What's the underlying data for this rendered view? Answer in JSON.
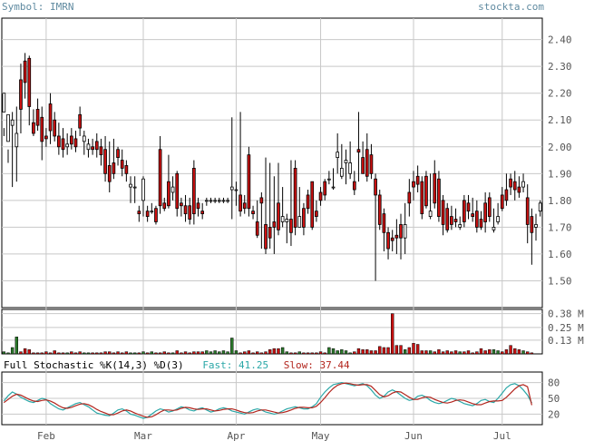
{
  "header": {
    "symbol_text": "Symbol: IMRN",
    "site_text": "stockta.com"
  },
  "stoch": {
    "title": "Full Stochastic %K(14,3) %D(3)",
    "fast_label": "Fast: 41.25",
    "slow_label": "Slow: 37.44"
  },
  "colors": {
    "up": "#ffffff",
    "down": "#cc1111",
    "wick": "#000000",
    "vol_up": "#2a7a2a",
    "vol_down": "#cc1111",
    "fast": "#2aa7a7",
    "slow": "#b3261e",
    "grid": "#c8c8c8"
  },
  "chart_data": [
    {
      "type": "candlestick",
      "ylim": [
        1.4,
        2.48
      ],
      "y_ticks": [
        "2.40",
        "2.30",
        "2.20",
        "2.10",
        "2.00",
        "1.90",
        "1.80",
        "1.70",
        "1.60",
        "1.50"
      ],
      "x_ticks": [
        "Feb",
        "Mar",
        "Apr",
        "May",
        "Jun",
        "Jul"
      ],
      "x_tick_index": [
        10,
        33,
        55,
        75,
        97,
        118
      ],
      "grid": true,
      "candles": [
        [
          2.13,
          2.2,
          2.07,
          2.04
        ],
        [
          2.02,
          2.12,
          1.99,
          1.94
        ],
        [
          2.08,
          2.1,
          2.13,
          1.85
        ],
        [
          2.0,
          2.05,
          2.15,
          1.87
        ],
        [
          2.25,
          2.14,
          2.31,
          2.05
        ],
        [
          2.32,
          2.24,
          2.35,
          2.18
        ],
        [
          2.33,
          2.15,
          2.34,
          2.08
        ],
        [
          2.09,
          2.05,
          2.14,
          2.04
        ],
        [
          2.14,
          2.08,
          2.18,
          2.06
        ],
        [
          2.11,
          2.02,
          2.15,
          1.95
        ],
        [
          2.04,
          2.03,
          2.07,
          2.0
        ],
        [
          2.16,
          2.06,
          2.2,
          2.01
        ],
        [
          2.1,
          2.04,
          2.13,
          2.02
        ],
        [
          2.04,
          2.0,
          2.09,
          1.97
        ],
        [
          2.03,
          1.99,
          2.07,
          1.96
        ],
        [
          2.0,
          2.01,
          2.05,
          1.97
        ],
        [
          2.04,
          2.01,
          2.07,
          1.99
        ],
        [
          2.03,
          2.0,
          2.06,
          1.98
        ],
        [
          2.12,
          2.07,
          2.15,
          2.04
        ],
        [
          2.02,
          2.04,
          2.06,
          1.97
        ],
        [
          1.99,
          2.01,
          2.03,
          1.96
        ],
        [
          2.0,
          1.99,
          2.03,
          1.97
        ],
        [
          2.02,
          1.99,
          2.05,
          1.96
        ],
        [
          2.0,
          1.97,
          2.03,
          1.93
        ],
        [
          1.99,
          1.9,
          2.04,
          1.87
        ],
        [
          1.93,
          1.87,
          2.02,
          1.83
        ],
        [
          1.94,
          1.9,
          2.03,
          1.88
        ],
        [
          1.99,
          1.96,
          2.0,
          1.93
        ],
        [
          1.95,
          1.92,
          1.99,
          1.89
        ],
        [
          1.93,
          1.9,
          1.95,
          1.87
        ],
        [
          1.85,
          1.86,
          1.89,
          1.79
        ],
        [
          1.85,
          1.85,
          1.89,
          1.79
        ],
        [
          1.76,
          1.75,
          1.78,
          1.72
        ],
        [
          1.8,
          1.88,
          1.89,
          1.74
        ],
        [
          1.76,
          1.74,
          1.78,
          1.72
        ],
        [
          1.76,
          1.76,
          1.79,
          1.75
        ],
        [
          1.77,
          1.72,
          1.78,
          1.71
        ],
        [
          1.99,
          1.78,
          2.04,
          1.75
        ],
        [
          1.79,
          1.77,
          1.81,
          1.76
        ],
        [
          1.87,
          1.78,
          1.97,
          1.77
        ],
        [
          1.83,
          1.85,
          1.89,
          1.8
        ],
        [
          1.9,
          1.77,
          1.91,
          1.74
        ],
        [
          1.79,
          1.78,
          1.81,
          1.74
        ],
        [
          1.78,
          1.75,
          1.82,
          1.72
        ],
        [
          1.78,
          1.73,
          1.81,
          1.71
        ],
        [
          1.92,
          1.75,
          1.95,
          1.71
        ],
        [
          1.79,
          1.77,
          1.81,
          1.74
        ],
        [
          1.76,
          1.75,
          1.79,
          1.73
        ],
        [
          1.8,
          1.8,
          1.81,
          1.78
        ],
        [
          1.8,
          1.8,
          1.81,
          1.79
        ],
        [
          1.8,
          1.8,
          1.81,
          1.79
        ],
        [
          1.8,
          1.8,
          1.81,
          1.79
        ],
        [
          1.8,
          1.8,
          1.81,
          1.79
        ],
        [
          1.8,
          1.8,
          1.81,
          1.79
        ],
        [
          1.84,
          1.85,
          2.11,
          1.73
        ],
        [
          1.84,
          1.84,
          1.87,
          1.78
        ],
        [
          1.82,
          1.76,
          2.13,
          1.74
        ],
        [
          1.79,
          1.77,
          1.82,
          1.75
        ],
        [
          1.97,
          1.77,
          2.0,
          1.74
        ],
        [
          1.76,
          1.75,
          1.78,
          1.73
        ],
        [
          1.72,
          1.67,
          1.8,
          1.66
        ],
        [
          1.81,
          1.79,
          1.83,
          1.62
        ],
        [
          1.71,
          1.62,
          1.96,
          1.6
        ],
        [
          1.7,
          1.66,
          1.94,
          1.62
        ],
        [
          1.72,
          1.7,
          1.89,
          1.6
        ],
        [
          1.79,
          1.69,
          1.94,
          1.67
        ],
        [
          1.72,
          1.74,
          1.85,
          1.7
        ],
        [
          1.72,
          1.73,
          1.75,
          1.64
        ],
        [
          1.73,
          1.68,
          1.95,
          1.63
        ],
        [
          1.92,
          1.7,
          1.95,
          1.67
        ],
        [
          1.7,
          1.74,
          1.85,
          1.72
        ],
        [
          1.77,
          1.7,
          1.79,
          1.67
        ],
        [
          1.82,
          1.77,
          1.84,
          1.75
        ],
        [
          1.87,
          1.7,
          1.87,
          1.69
        ],
        [
          1.76,
          1.74,
          1.8,
          1.72
        ],
        [
          1.83,
          1.8,
          1.85,
          1.78
        ],
        [
          1.87,
          1.82,
          1.88,
          1.8
        ],
        [
          1.88,
          1.88,
          1.91,
          1.86
        ],
        [
          1.85,
          1.85,
          1.92,
          1.84
        ],
        [
          1.96,
          1.98,
          2.05,
          1.9
        ],
        [
          1.89,
          1.92,
          2.01,
          1.88
        ],
        [
          1.94,
          1.95,
          1.99,
          1.86
        ],
        [
          1.9,
          1.94,
          2.02,
          1.88
        ],
        [
          1.87,
          1.84,
          1.91,
          1.82
        ],
        [
          1.99,
          1.98,
          2.13,
          1.87
        ],
        [
          1.96,
          1.9,
          2.02,
          1.9
        ],
        [
          1.99,
          1.89,
          2.05,
          1.87
        ],
        [
          1.97,
          1.9,
          2.01,
          1.88
        ],
        [
          1.88,
          1.82,
          1.9,
          1.5
        ],
        [
          1.82,
          1.71,
          1.84,
          1.69
        ],
        [
          1.75,
          1.68,
          1.77,
          1.61
        ],
        [
          1.68,
          1.62,
          1.7,
          1.58
        ],
        [
          1.66,
          1.65,
          1.69,
          1.61
        ],
        [
          1.67,
          1.66,
          1.73,
          1.6
        ],
        [
          1.71,
          1.66,
          1.75,
          1.58
        ],
        [
          1.66,
          1.71,
          1.79,
          1.6
        ],
        [
          1.83,
          1.79,
          1.88,
          1.74
        ],
        [
          1.87,
          1.85,
          1.91,
          1.8
        ],
        [
          1.89,
          1.86,
          1.93,
          1.83
        ],
        [
          1.87,
          1.75,
          1.89,
          1.73
        ],
        [
          1.89,
          1.78,
          1.91,
          1.77
        ],
        [
          1.74,
          1.76,
          1.9,
          1.73
        ],
        [
          1.9,
          1.79,
          1.95,
          1.77
        ],
        [
          1.88,
          1.74,
          1.91,
          1.72
        ],
        [
          1.8,
          1.71,
          1.82,
          1.67
        ],
        [
          1.77,
          1.69,
          1.79,
          1.68
        ],
        [
          1.74,
          1.71,
          1.78,
          1.69
        ],
        [
          1.73,
          1.72,
          1.77,
          1.7
        ],
        [
          1.7,
          1.71,
          1.74,
          1.69
        ],
        [
          1.8,
          1.72,
          1.82,
          1.7
        ],
        [
          1.79,
          1.76,
          1.82,
          1.73
        ],
        [
          1.75,
          1.74,
          1.81,
          1.72
        ],
        [
          1.76,
          1.7,
          1.8,
          1.68
        ],
        [
          1.73,
          1.7,
          1.76,
          1.69
        ],
        [
          1.79,
          1.72,
          1.83,
          1.68
        ],
        [
          1.81,
          1.74,
          1.83,
          1.72
        ],
        [
          1.69,
          1.7,
          1.77,
          1.68
        ],
        [
          1.72,
          1.74,
          1.79,
          1.71
        ],
        [
          1.82,
          1.77,
          1.85,
          1.76
        ],
        [
          1.84,
          1.8,
          1.9,
          1.78
        ],
        [
          1.88,
          1.85,
          1.9,
          1.82
        ],
        [
          1.87,
          1.84,
          1.91,
          1.8
        ],
        [
          1.85,
          1.83,
          1.89,
          1.81
        ],
        [
          1.85,
          1.87,
          1.9,
          1.83
        ],
        [
          1.81,
          1.71,
          1.86,
          1.64
        ],
        [
          1.74,
          1.68,
          1.77,
          1.56
        ],
        [
          1.7,
          1.71,
          1.75,
          1.65
        ],
        [
          1.76,
          1.79,
          1.8,
          1.74
        ]
      ]
    },
    {
      "type": "bar",
      "title": "Volume",
      "y_ticks": [
        "0.38 M",
        "0.25 M",
        "0.13 M"
      ],
      "ylim": [
        0,
        0.42
      ],
      "values": [
        0.02,
        0.01,
        0.06,
        0.16,
        0.02,
        0.05,
        0.04,
        0.01,
        0.01,
        0.01,
        0.02,
        0.01,
        0.03,
        0.01,
        0.01,
        0.01,
        0.02,
        0.01,
        0.02,
        0.01,
        0.01,
        0.01,
        0.01,
        0.01,
        0.02,
        0.02,
        0.01,
        0.02,
        0.01,
        0.02,
        0.01,
        0.01,
        0.01,
        0.02,
        0.01,
        0.02,
        0.01,
        0.01,
        0.02,
        0.01,
        0.01,
        0.03,
        0.01,
        0.02,
        0.01,
        0.02,
        0.02,
        0.02,
        0.03,
        0.02,
        0.03,
        0.02,
        0.03,
        0.02,
        0.15,
        0.03,
        0.01,
        0.02,
        0.03,
        0.01,
        0.02,
        0.01,
        0.02,
        0.04,
        0.05,
        0.05,
        0.06,
        0.02,
        0.01,
        0.01,
        0.02,
        0.01,
        0.01,
        0.01,
        0.01,
        0.02,
        0.01,
        0.06,
        0.05,
        0.03,
        0.04,
        0.03,
        0.01,
        0.02,
        0.05,
        0.04,
        0.04,
        0.03,
        0.03,
        0.07,
        0.06,
        0.06,
        0.38,
        0.08,
        0.08,
        0.04,
        0.06,
        0.1,
        0.09,
        0.03,
        0.03,
        0.03,
        0.02,
        0.04,
        0.02,
        0.03,
        0.02,
        0.03,
        0.02,
        0.02,
        0.03,
        0.01,
        0.02,
        0.05,
        0.03,
        0.04,
        0.04,
        0.03,
        0.02,
        0.04,
        0.08,
        0.05,
        0.04,
        0.03,
        0.02,
        0.01
      ]
    },
    {
      "type": "line",
      "title": "Full Stochastic %K(14,3) %D(3)",
      "y_ticks": [
        "80",
        "50",
        "20"
      ],
      "ylim": [
        0,
        100
      ],
      "series": [
        {
          "name": "Fast",
          "values": [
            45,
            55,
            62,
            58,
            52,
            48,
            44,
            42,
            46,
            50,
            48,
            40,
            35,
            30,
            28,
            32,
            36,
            40,
            42,
            38,
            34,
            28,
            22,
            20,
            18,
            17,
            22,
            28,
            30,
            26,
            20,
            18,
            15,
            12,
            14,
            20,
            26,
            30,
            28,
            24,
            26,
            30,
            34,
            32,
            28,
            26,
            30,
            32,
            28,
            24,
            26,
            30,
            32,
            30,
            26,
            24,
            22,
            20,
            24,
            28,
            30,
            28,
            24,
            22,
            20,
            22,
            26,
            30,
            32,
            34,
            32,
            30,
            30,
            34,
            40,
            52,
            62,
            70,
            76,
            78,
            80,
            78,
            76,
            74,
            76,
            78,
            74,
            66,
            56,
            50,
            54,
            62,
            66,
            62,
            56,
            50,
            46,
            48,
            54,
            56,
            52,
            46,
            42,
            40,
            42,
            46,
            50,
            48,
            44,
            40,
            38,
            36,
            40,
            46,
            48,
            44,
            42,
            50,
            60,
            70,
            76,
            78,
            74,
            66,
            56,
            41
          ]
        },
        {
          "name": "Slow",
          "values": [
            42,
            48,
            54,
            58,
            56,
            52,
            48,
            45,
            44,
            46,
            47,
            45,
            41,
            36,
            32,
            31,
            33,
            36,
            39,
            40,
            38,
            34,
            29,
            25,
            22,
            19,
            19,
            22,
            26,
            28,
            26,
            22,
            19,
            16,
            14,
            15,
            19,
            24,
            28,
            28,
            27,
            28,
            31,
            33,
            32,
            30,
            29,
            30,
            30,
            28,
            26,
            27,
            29,
            30,
            30,
            28,
            25,
            23,
            22,
            23,
            26,
            28,
            28,
            26,
            24,
            22,
            23,
            25,
            28,
            31,
            33,
            33,
            32,
            32,
            35,
            42,
            51,
            61,
            69,
            75,
            78,
            79,
            78,
            76,
            75,
            76,
            76,
            73,
            65,
            57,
            53,
            55,
            60,
            63,
            62,
            57,
            52,
            48,
            48,
            51,
            53,
            52,
            48,
            45,
            42,
            41,
            43,
            46,
            47,
            46,
            43,
            40,
            38,
            38,
            41,
            44,
            45,
            45,
            46,
            52,
            60,
            68,
            74,
            76,
            72,
            37
          ]
        }
      ]
    }
  ]
}
